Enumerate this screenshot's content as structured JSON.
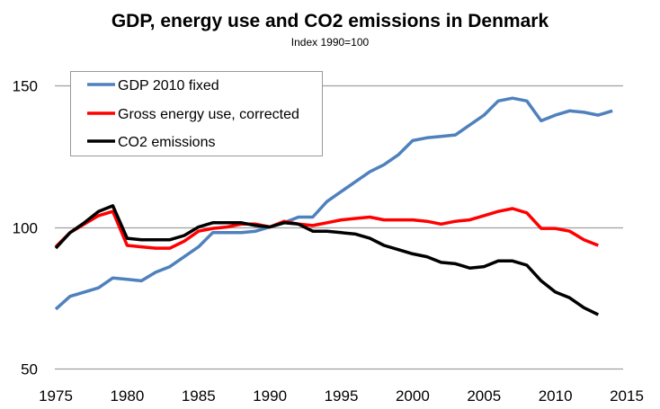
{
  "chart_data": {
    "type": "line",
    "title": "GDP, energy use and CO2 emissions in Denmark",
    "subtitle": "Index 1990=100",
    "xlabel": "",
    "ylabel": "",
    "xlim": [
      1975,
      2015
    ],
    "ylim": [
      50,
      150
    ],
    "x_ticks": [
      "1975",
      "1980",
      "1985",
      "1990",
      "1995",
      "2000",
      "2005",
      "2010",
      "2015"
    ],
    "y_ticks": [
      "50",
      "100",
      "150"
    ],
    "grid": "horizontal",
    "legend_position": "top-left",
    "series": [
      {
        "name": "GDP 2010 fixed",
        "color": "#4f81bd",
        "x": [
          1975,
          1976,
          1977,
          1978,
          1979,
          1980,
          1981,
          1982,
          1983,
          1984,
          1985,
          1986,
          1987,
          1988,
          1989,
          1990,
          1991,
          1992,
          1993,
          1994,
          1995,
          1996,
          1997,
          1998,
          1999,
          2000,
          2001,
          2002,
          2003,
          2004,
          2005,
          2006,
          2007,
          2008,
          2009,
          2010,
          2011,
          2012,
          2013,
          2014
        ],
        "values": [
          71,
          75.5,
          77,
          78.5,
          82,
          81.5,
          81,
          84,
          86,
          89.5,
          93,
          98,
          98,
          98,
          98.5,
          100,
          101.5,
          103.5,
          103.5,
          109,
          112.5,
          116,
          119.5,
          122,
          125.5,
          130.5,
          131.5,
          132,
          132.5,
          136,
          139.5,
          144.5,
          145.5,
          144.5,
          137.5,
          139.5,
          141,
          140.5,
          139.5,
          141
        ]
      },
      {
        "name": "Gross energy use, corrected",
        "color": "#ff0000",
        "x": [
          1975,
          1976,
          1977,
          1978,
          1979,
          1980,
          1981,
          1982,
          1983,
          1984,
          1985,
          1986,
          1987,
          1988,
          1989,
          1990,
          1991,
          1992,
          1993,
          1994,
          1995,
          1996,
          1997,
          1998,
          1999,
          2000,
          2001,
          2002,
          2003,
          2004,
          2005,
          2006,
          2007,
          2008,
          2009,
          2010,
          2011,
          2012,
          2013
        ],
        "values": [
          93,
          98,
          101,
          104,
          105.5,
          93.5,
          93,
          92.5,
          92.5,
          95,
          98.5,
          99.5,
          100,
          101,
          101,
          100,
          102,
          101,
          100.5,
          101.5,
          102.5,
          103,
          103.5,
          102.5,
          102.5,
          102.5,
          102,
          101,
          102,
          102.5,
          104,
          105.5,
          106.5,
          105,
          99.5,
          99.5,
          98.5,
          95.5,
          93.5
        ]
      },
      {
        "name": "CO2 emissions",
        "color": "#000000",
        "x": [
          1975,
          1976,
          1977,
          1978,
          1979,
          1980,
          1981,
          1982,
          1983,
          1984,
          1985,
          1986,
          1987,
          1988,
          1989,
          1990,
          1991,
          1992,
          1993,
          1994,
          1995,
          1996,
          1997,
          1998,
          1999,
          2000,
          2001,
          2002,
          2003,
          2004,
          2005,
          2006,
          2007,
          2008,
          2009,
          2010,
          2011,
          2012,
          2013
        ],
        "values": [
          92.5,
          98,
          101.5,
          105.5,
          107.5,
          96,
          95.5,
          95.5,
          95.5,
          97,
          100,
          101.5,
          101.5,
          101.5,
          100.5,
          100,
          101.5,
          101,
          98.5,
          98.5,
          98,
          97.5,
          96,
          93.5,
          92,
          90.5,
          89.5,
          87.5,
          87,
          85.5,
          86,
          88,
          88,
          86.5,
          81,
          77,
          75,
          71.5,
          69
        ]
      }
    ]
  }
}
